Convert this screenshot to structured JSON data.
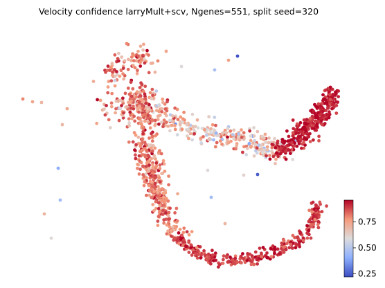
{
  "chart_data": {
    "type": "scatter",
    "title": "Velocity confidence larryMult+scv, Ngenes=551, split seed=320",
    "colormap": "coolwarm",
    "colorbar": {
      "range": [
        0.22,
        0.96
      ],
      "ticks": [
        0.25,
        0.5,
        0.75
      ],
      "tick_labels": [
        "0.25",
        "0.50",
        "0.75"
      ]
    },
    "axes_visible": false,
    "grid": false,
    "regions_note_values": "cell velocity confidence per embedded cell",
    "distribution": {
      "upper_branch_left_mean": 0.8,
      "center_band_mean": 0.68,
      "right_arm_mean": 0.93,
      "lower_arc_mean": 0.9,
      "outlier_min": 0.23
    }
  },
  "colors": {
    "low": "#3b4cc0",
    "mid": "#dddddd",
    "high": "#b40426"
  }
}
